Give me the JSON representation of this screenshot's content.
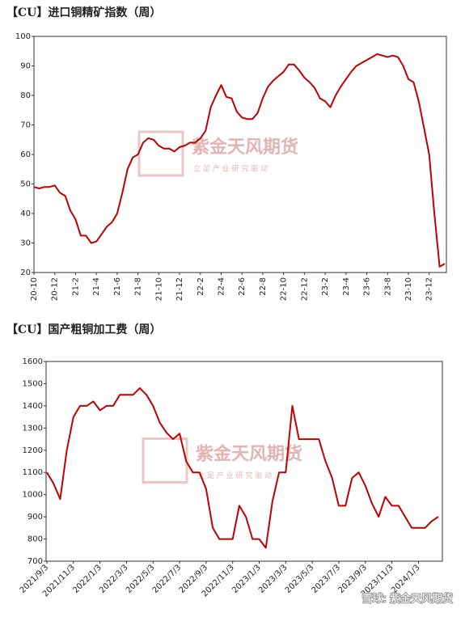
{
  "chart_data": [
    {
      "type": "line",
      "title": "【CU】进口铜精矿指数（周）",
      "watermark": [
        "紫金天风期货",
        "立 足 产 业 研 究 驱 动"
      ],
      "categories": [
        "20-10",
        null,
        null,
        null,
        "20-12",
        null,
        null,
        null,
        "21-2",
        null,
        null,
        null,
        "21-4",
        null,
        null,
        null,
        "21-6",
        null,
        null,
        null,
        "21-8",
        null,
        null,
        null,
        "21-10",
        null,
        null,
        null,
        "21-12",
        null,
        null,
        null,
        "22-2",
        null,
        null,
        null,
        "22-4",
        null,
        null,
        null,
        "22-6",
        null,
        null,
        null,
        "22-8",
        null,
        null,
        null,
        "22-10",
        null,
        null,
        null,
        "22-12",
        null,
        null,
        null,
        "23-2",
        null,
        null,
        null,
        "23-4",
        null,
        null,
        null,
        "23-6",
        null,
        null,
        null,
        "23-8",
        null,
        null,
        null,
        "23-10",
        null,
        null,
        null,
        "23-12",
        null,
        null,
        null
      ],
      "values": [
        49,
        48.5,
        49,
        49,
        49.5,
        47,
        46,
        41,
        38,
        32.5,
        32.5,
        30,
        30.5,
        33,
        35.5,
        37,
        40,
        47,
        55,
        59,
        60,
        64,
        65.5,
        65,
        63,
        62,
        62,
        61,
        62.5,
        63,
        64,
        64,
        65.5,
        68,
        76,
        80,
        83.5,
        79.5,
        79,
        74.5,
        72.5,
        72,
        72,
        74,
        79,
        83,
        85,
        86.5,
        88,
        90.5,
        90.5,
        88.5,
        86,
        84.5,
        82.5,
        79,
        78,
        76,
        80,
        83,
        85.5,
        88,
        90,
        91,
        92,
        93,
        94,
        93.5,
        93,
        93.5,
        93,
        90,
        85.5,
        84.5,
        78,
        69,
        60,
        40,
        22,
        23
      ],
      "color": "#c00000",
      "ylim": [
        20,
        100
      ],
      "yticks": [
        20,
        30,
        40,
        50,
        60,
        70,
        80,
        90,
        100
      ],
      "grid": false
    },
    {
      "type": "line",
      "title": "【CU】国产粗铜加工费（周）",
      "watermark": [
        "紫金天风期货",
        "立 足 产 业 研 究 驱 动"
      ],
      "categories": [
        "2021/9/3",
        null,
        null,
        null,
        "2021/11/3",
        null,
        null,
        null,
        "2022/1/3",
        null,
        null,
        null,
        "2022/3/3",
        null,
        null,
        null,
        "2022/5/3",
        null,
        null,
        null,
        "2022/7/3",
        null,
        null,
        null,
        "2022/9/3",
        null,
        null,
        null,
        "2022/11/3",
        null,
        null,
        null,
        "2023/1/3",
        null,
        null,
        null,
        "2023/3/3",
        null,
        null,
        null,
        "2023/5/3",
        null,
        null,
        null,
        "2023/7/3",
        null,
        null,
        null,
        "2023/9/3",
        null,
        null,
        null,
        "2023/11/3",
        null,
        null,
        null,
        "2024/1/3",
        null,
        null,
        null
      ],
      "values": [
        1100,
        1050,
        980,
        1200,
        1350,
        1400,
        1400,
        1420,
        1380,
        1400,
        1400,
        1450,
        1450,
        1450,
        1480,
        1450,
        1400,
        1325,
        1280,
        1250,
        1275,
        1150,
        1100,
        1100,
        1025,
        850,
        800,
        800,
        800,
        950,
        900,
        800,
        800,
        760,
        970,
        1100,
        1100,
        1400,
        1250,
        1250,
        1250,
        1250,
        1150,
        1075,
        950,
        950,
        1075,
        1100,
        1040,
        960,
        900,
        990,
        950,
        950,
        900,
        850,
        850,
        850,
        880,
        900
      ],
      "color": "#c00000",
      "ylim": [
        700,
        1600
      ],
      "yticks": [
        700,
        800,
        900,
        1000,
        1100,
        1200,
        1300,
        1400,
        1500,
        1600
      ],
      "grid": false
    }
  ],
  "footer": "雪球: 紫金天风期货"
}
